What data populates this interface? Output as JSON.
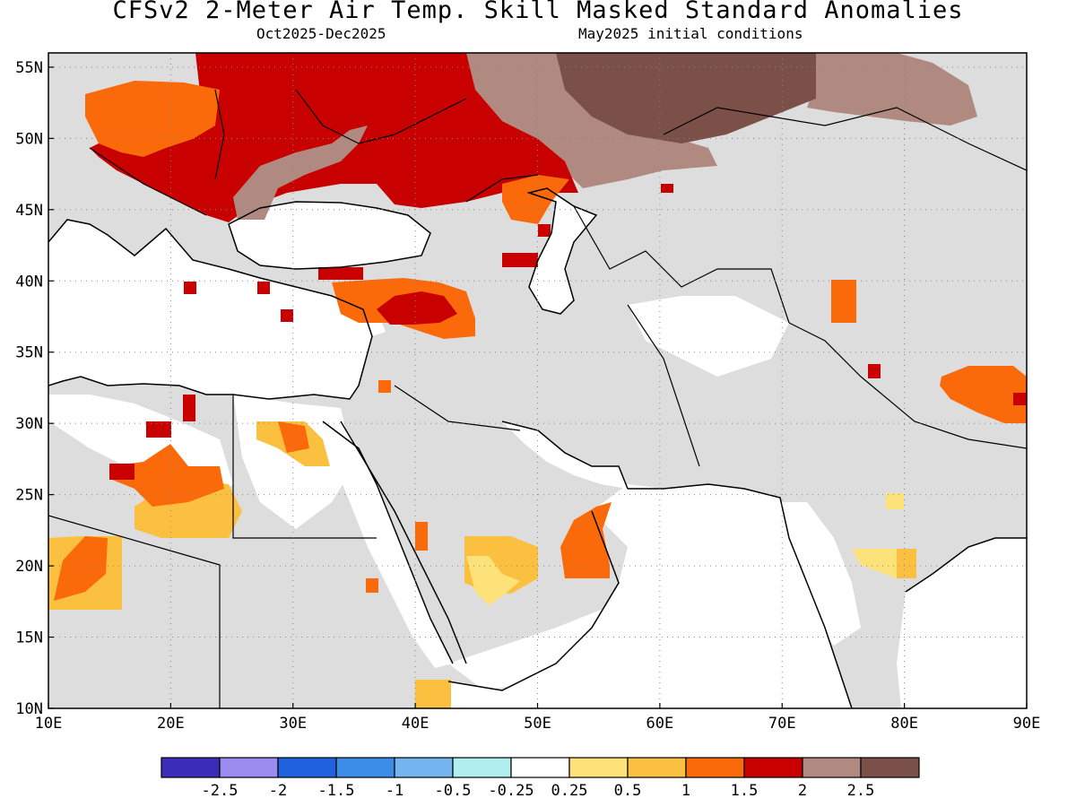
{
  "title": "CFSv2 2-Meter Air Temp. Skill Masked Standard Anomalies",
  "period": "Oct2025-Dec2025",
  "initial_conditions": "May2025 initial conditions",
  "map": {
    "lon_range": [
      10,
      90
    ],
    "lat_range": [
      10,
      56
    ],
    "lon_ticks": [
      "10E",
      "20E",
      "30E",
      "40E",
      "50E",
      "60E",
      "70E",
      "80E",
      "90E"
    ],
    "lat_ticks": [
      "10N",
      "15N",
      "20N",
      "25N",
      "30N",
      "35N",
      "40N",
      "45N",
      "50N",
      "55N"
    ],
    "masked_color": "#dddddd",
    "land_color": "#ffffff"
  },
  "legend": {
    "colors": [
      "#3a2db8",
      "#9c8cf0",
      "#1f62e0",
      "#3c8de8",
      "#74b4f0",
      "#b0eef0",
      "#ffffff",
      "#fde27a",
      "#fcc040",
      "#fb6a0a",
      "#c80000",
      "#b08a80",
      "#7a5048"
    ],
    "labels": [
      "-2.5",
      "-2",
      "-1.5",
      "-1",
      "-0.5",
      "-0.25",
      "0.25",
      "0.5",
      "1",
      "1.5",
      "2",
      "2.5"
    ]
  },
  "anomaly_regions": [
    {
      "name": "eastern-europe-core",
      "value": 2
    },
    {
      "name": "central-europe-orange",
      "value": 1.5
    },
    {
      "name": "western-kazakhstan-brown",
      "value": 2.5
    },
    {
      "name": "central-kazakhstan-darkbrown",
      "value": 3
    },
    {
      "name": "anatolia-orange",
      "value": 1.5
    },
    {
      "name": "anatolia-red",
      "value": 2
    },
    {
      "name": "libya-orange",
      "value": 1.5
    },
    {
      "name": "libya-yellow",
      "value": 1
    },
    {
      "name": "chad-orange",
      "value": 1.5
    },
    {
      "name": "arabia-yellow",
      "value": 0.5
    },
    {
      "name": "oman-orange",
      "value": 1.5
    },
    {
      "name": "tibet-orange",
      "value": 1.5
    },
    {
      "name": "india-yellow",
      "value": 0.5
    }
  ]
}
